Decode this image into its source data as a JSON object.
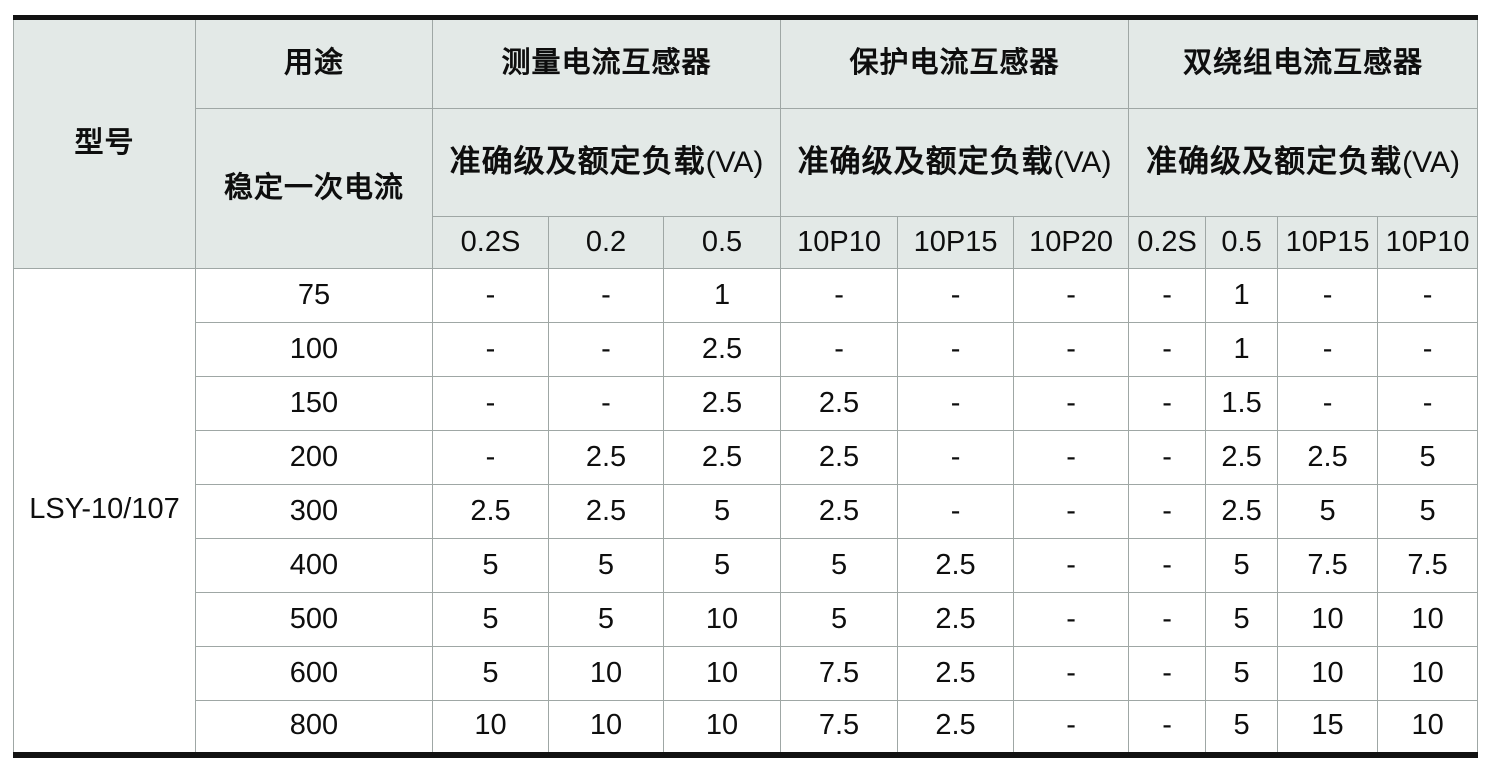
{
  "table": {
    "model_header": "型号",
    "usage_header": "用途",
    "primary_current_header": "稳定一次电流",
    "groups": [
      {
        "title": "测量电流互感器",
        "subtitle": "准确级及额定负载",
        "subtitle_unit": "(VA)",
        "columns": [
          "0.2S",
          "0.2",
          "0.5"
        ]
      },
      {
        "title": "保护电流互感器",
        "subtitle": "准确级及额定负载",
        "subtitle_unit": "(VA)",
        "columns": [
          "10P10",
          "10P15",
          "10P20"
        ]
      },
      {
        "title": "双绕组电流互感器",
        "subtitle": "准确级及额定负载",
        "subtitle_unit": "(VA)",
        "columns": [
          "0.2S",
          "0.5",
          "10P15",
          "10P10"
        ]
      }
    ],
    "model": "LSY-10/107",
    "rows": [
      {
        "current": "75",
        "values": [
          "-",
          "-",
          "1",
          "-",
          "-",
          "-",
          "-",
          "1",
          "-",
          "-"
        ]
      },
      {
        "current": "100",
        "values": [
          "-",
          "-",
          "2.5",
          "-",
          "-",
          "-",
          "-",
          "1",
          "-",
          "-"
        ]
      },
      {
        "current": "150",
        "values": [
          "-",
          "-",
          "2.5",
          "2.5",
          "-",
          "-",
          "-",
          "1.5",
          "-",
          "-"
        ]
      },
      {
        "current": "200",
        "values": [
          "-",
          "2.5",
          "2.5",
          "2.5",
          "-",
          "-",
          "-",
          "2.5",
          "2.5",
          "5"
        ]
      },
      {
        "current": "300",
        "values": [
          "2.5",
          "2.5",
          "5",
          "2.5",
          "-",
          "-",
          "-",
          "2.5",
          "5",
          "5"
        ]
      },
      {
        "current": "400",
        "values": [
          "5",
          "5",
          "5",
          "5",
          "2.5",
          "-",
          "-",
          "5",
          "7.5",
          "7.5"
        ]
      },
      {
        "current": "500",
        "values": [
          "5",
          "5",
          "10",
          "5",
          "2.5",
          "-",
          "-",
          "5",
          "10",
          "10"
        ]
      },
      {
        "current": "600",
        "values": [
          "5",
          "10",
          "10",
          "7.5",
          "2.5",
          "-",
          "-",
          "5",
          "10",
          "10"
        ]
      },
      {
        "current": "800",
        "values": [
          "10",
          "10",
          "10",
          "7.5",
          "2.5",
          "-",
          "-",
          "5",
          "15",
          "10"
        ]
      }
    ],
    "colors": {
      "header_bg": "#e3e9e7",
      "grid_line": "#9fa7a5",
      "frame_line": "#121212",
      "text": "#0e0e0e"
    }
  }
}
